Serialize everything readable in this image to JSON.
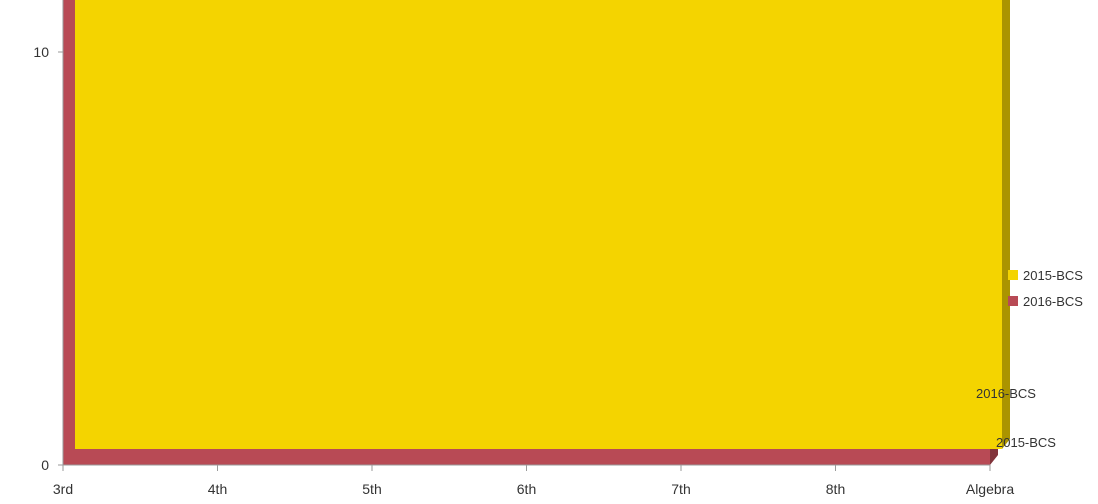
{
  "chart_data": {
    "type": "area",
    "title": "",
    "xlabel": "",
    "ylabel": "",
    "categories": [
      "3rd",
      "4th",
      "5th",
      "6th",
      "7th",
      "8th",
      "Algebra"
    ],
    "ylim": [
      0,
      90
    ],
    "yticks": [
      0,
      10,
      20,
      30,
      40,
      50,
      60,
      70,
      80,
      90
    ],
    "series": [
      {
        "name": "2015-BCS",
        "color": "#f4d400",
        "values": [
          30,
          36,
          27,
          47,
          62,
          38,
          85
        ]
      },
      {
        "name": "2016-BCS",
        "color": "#b84a55",
        "values": [
          55,
          46,
          56,
          47,
          77,
          53,
          92
        ]
      }
    ],
    "legend_position": "right",
    "grid": true,
    "depth_labels": [
      "2016-BCS",
      "2015-BCS"
    ]
  }
}
